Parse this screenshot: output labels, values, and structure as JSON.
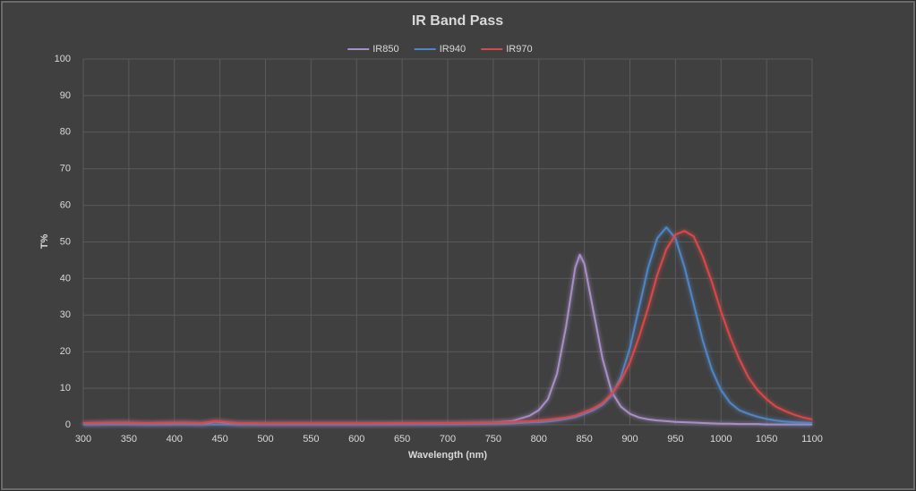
{
  "chart_data": {
    "type": "line",
    "title": "IR Band Pass",
    "x_label": "Wavelength (nm)",
    "y_label": "T%",
    "x": [
      300,
      340,
      370,
      410,
      430,
      445,
      470,
      500,
      600,
      700,
      750,
      770,
      790,
      800,
      810,
      820,
      830,
      840,
      845,
      850,
      860,
      870,
      880,
      890,
      900,
      910,
      920,
      930,
      940,
      950,
      960,
      970,
      980,
      990,
      1000,
      1010,
      1020,
      1030,
      1040,
      1050,
      1060,
      1070,
      1080,
      1090,
      1100
    ],
    "series": [
      {
        "name": "IR850",
        "color": "#a98fc8",
        "values": [
          0.2,
          0.6,
          0.2,
          0.5,
          0.2,
          0.9,
          0.2,
          0.2,
          0.2,
          0.3,
          0.6,
          1,
          2.5,
          4,
          7,
          14,
          27,
          43,
          46.5,
          44,
          31,
          18,
          9,
          5,
          3,
          2,
          1.5,
          1.2,
          1,
          0.8,
          0.7,
          0.6,
          0.5,
          0.4,
          0.3,
          0.3,
          0.2,
          0.2,
          0.2,
          0.1,
          0.1,
          0.1,
          0.1,
          0.1,
          0.1
        ]
      },
      {
        "name": "IR940",
        "color": "#4f86c6",
        "values": [
          0.1,
          0.1,
          0.1,
          0.1,
          0.1,
          0.1,
          0.1,
          0.1,
          0.1,
          0.2,
          0.3,
          0.4,
          0.6,
          0.7,
          0.9,
          1.2,
          1.6,
          2.1,
          2.5,
          3,
          4,
          5.5,
          8,
          13,
          21,
          32,
          43,
          51,
          54,
          51,
          43,
          33,
          23,
          15,
          9.5,
          6,
          4,
          3,
          2.2,
          1.6,
          1.2,
          0.9,
          0.7,
          0.6,
          0.5
        ]
      },
      {
        "name": "IR970",
        "color": "#d9484a",
        "values": [
          0.5,
          0.6,
          0.5,
          0.6,
          0.5,
          1.0,
          0.5,
          0.4,
          0.4,
          0.5,
          0.6,
          0.8,
          1,
          1.2,
          1.4,
          1.7,
          2,
          2.5,
          3,
          3.5,
          4.5,
          6,
          8.5,
          12,
          17,
          24,
          32,
          41,
          48,
          52,
          53,
          51.5,
          46,
          39,
          31,
          24,
          18,
          13,
          9.5,
          7,
          5,
          3.8,
          2.8,
          2,
          1.5
        ]
      }
    ],
    "xlim": [
      300,
      1100
    ],
    "ylim": [
      0,
      100
    ],
    "xticks": [
      300,
      350,
      400,
      450,
      500,
      550,
      600,
      650,
      700,
      750,
      800,
      850,
      900,
      950,
      1000,
      1050,
      1100
    ],
    "yticks": [
      0,
      10,
      20,
      30,
      40,
      50,
      60,
      70,
      80,
      90,
      100
    ],
    "grid": true,
    "legend": "top"
  }
}
